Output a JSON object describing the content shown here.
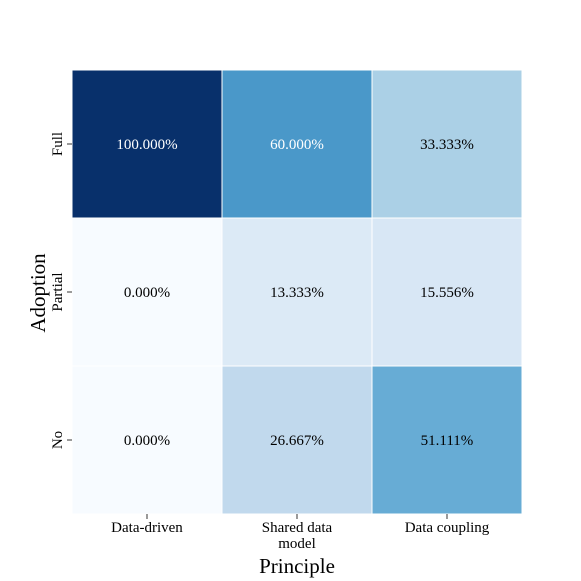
{
  "chart_data": {
    "type": "heatmap",
    "title": "",
    "xlabel": "Principle",
    "ylabel": "Adoption",
    "x_categories": [
      [
        "Data-driven"
      ],
      [
        "Shared data",
        "model"
      ],
      [
        "Data coupling"
      ]
    ],
    "y_categories": [
      "Full",
      "Partial",
      "No"
    ],
    "values": [
      [
        100.0,
        60.0,
        33.333
      ],
      [
        0.0,
        13.333,
        15.556
      ],
      [
        0.0,
        26.667,
        51.111
      ]
    ],
    "cell_labels": [
      [
        "100.000%",
        "60.000%",
        "33.333%"
      ],
      [
        "0.000%",
        "13.333%",
        "15.556%"
      ],
      [
        "0.000%",
        "26.667%",
        "51.111%"
      ]
    ],
    "colormap": "Blues",
    "value_range": [
      0,
      100
    ],
    "colorbar": false,
    "grid_lines_color": "#ffffff"
  }
}
